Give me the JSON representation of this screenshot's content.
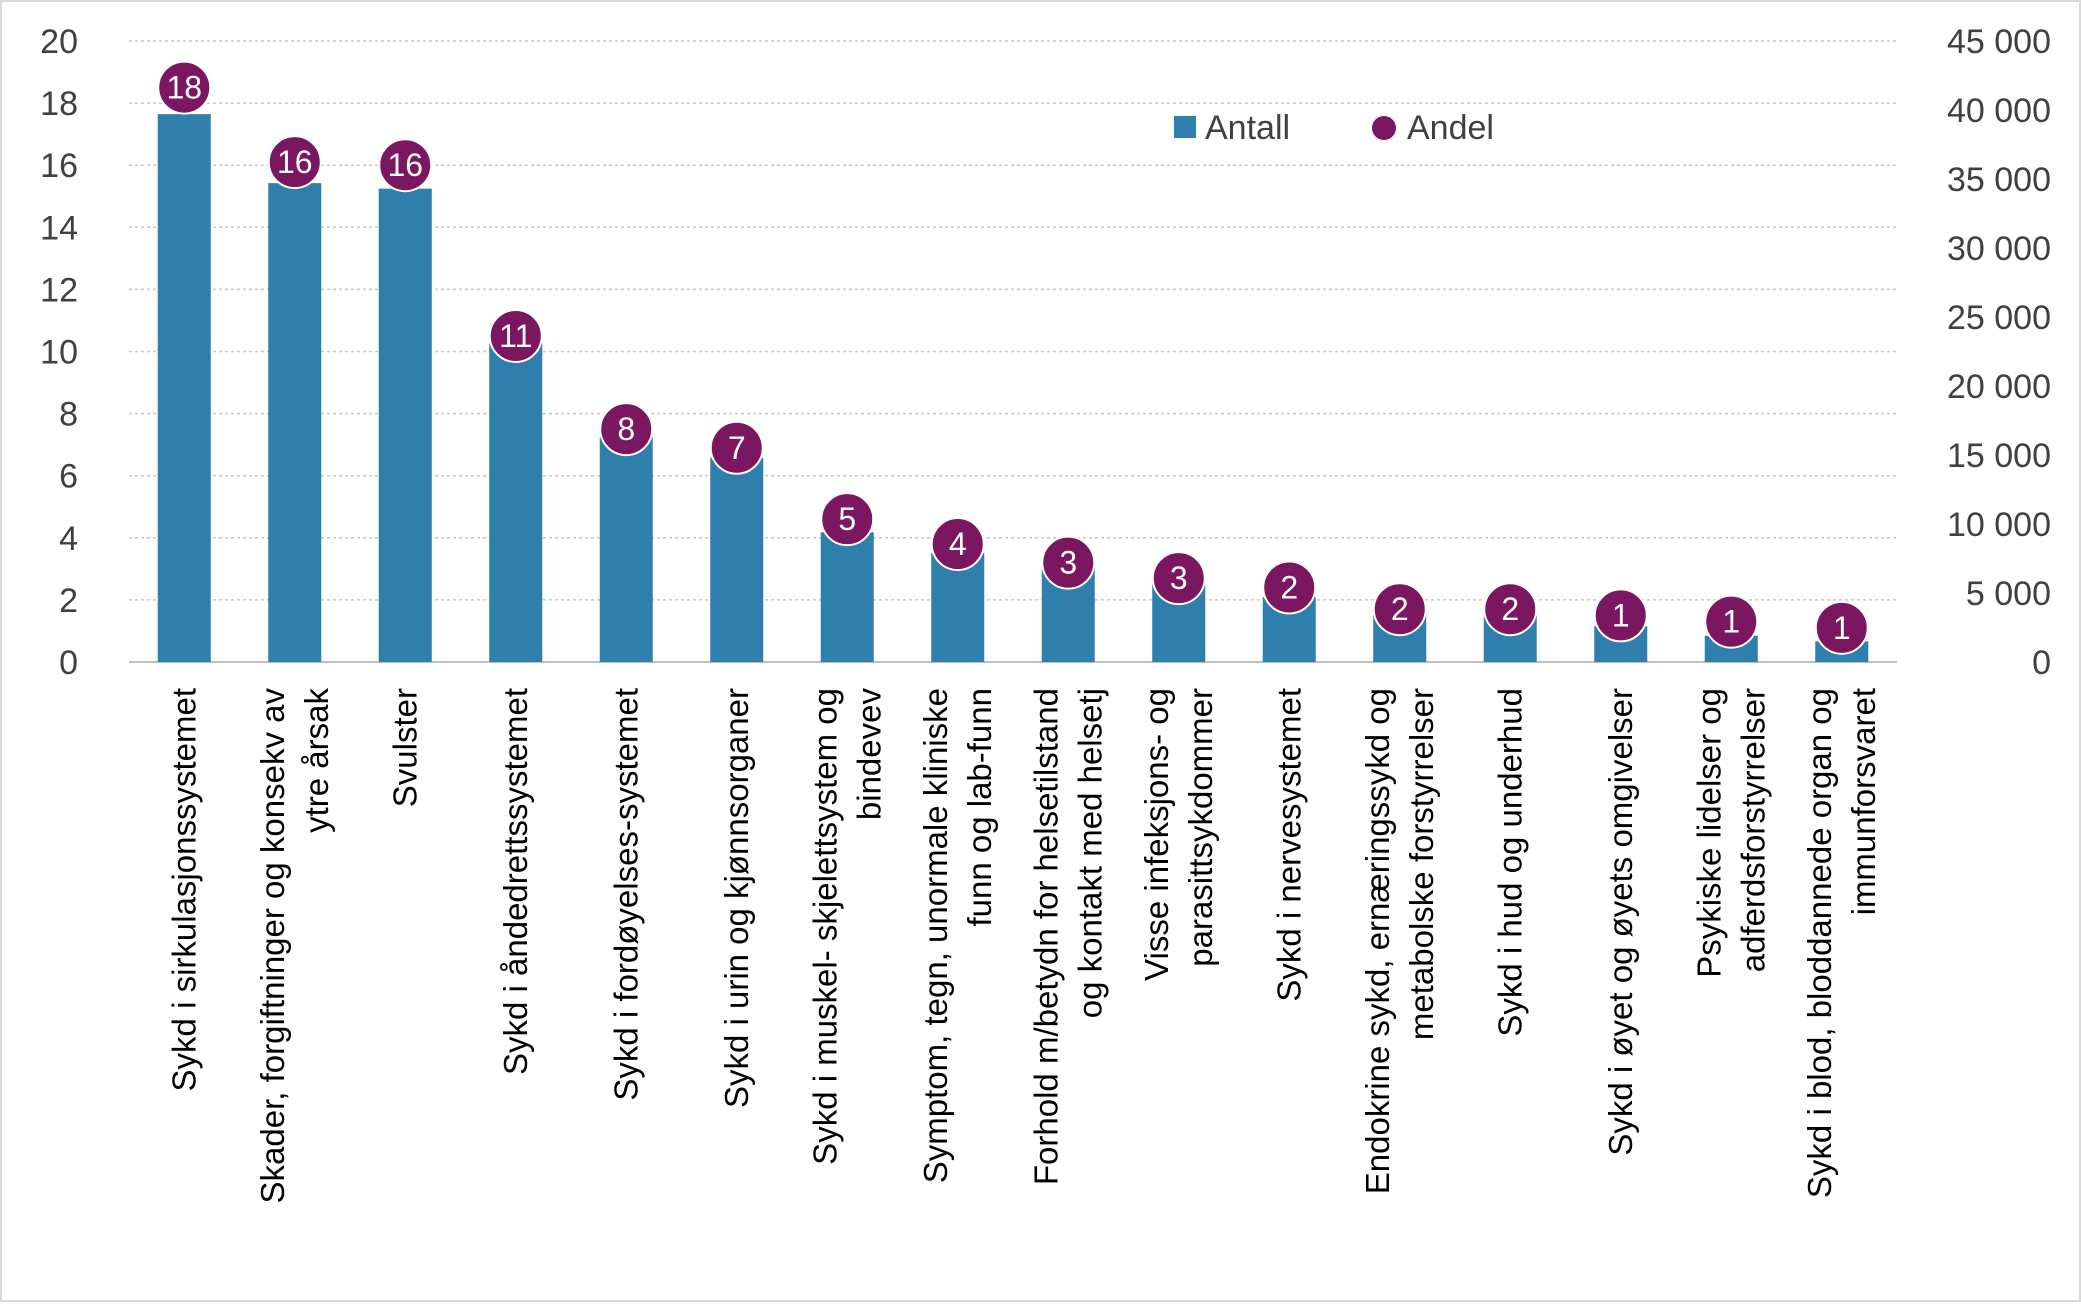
{
  "chart_data": {
    "type": "bar",
    "title": "",
    "categories": [
      [
        "Sykd i sirkulasjonssystemet"
      ],
      [
        "Skader, forgiftninger og konsekv av",
        "ytre årsak"
      ],
      [
        "Svulster"
      ],
      [
        "Sykd i åndedrettssystemet"
      ],
      [
        "Sykd i fordøyelses-systemet"
      ],
      [
        "Sykd i urin og kjønnsorganer"
      ],
      [
        "Sykd i muskel- skjelettsystem og",
        "bindevev"
      ],
      [
        "Symptom, tegn, unormale kliniske",
        "funn og lab-funn"
      ],
      [
        "Forhold m/betydn for helsetilstand",
        "og kontakt med helsetj"
      ],
      [
        "Visse infeksjons- og",
        "parasittsykdommer"
      ],
      [
        "Sykd i nervesystemet"
      ],
      [
        "Endokrine sykd, ernæringssykd og",
        "metabolske forstyrrelser"
      ],
      [
        "Sykd i hud og underhud"
      ],
      [
        "Sykd i øyet og øyets omgivelser"
      ],
      [
        "Psykiske lidelser og",
        "adferdsforstyrrelser"
      ],
      [
        "Sykd i blod, bloddannede organ og",
        "immunforsvaret"
      ]
    ],
    "series": [
      {
        "name": "Antall",
        "type": "bar",
        "axis": "right",
        "color": "#2e7fab",
        "values": [
          39700,
          34700,
          34300,
          23100,
          16300,
          14800,
          9400,
          7900,
          6900,
          5600,
          4700,
          3500,
          3400,
          2600,
          1900,
          1500
        ]
      },
      {
        "name": "Andel",
        "type": "scatter",
        "axis": "left",
        "color": "#7b1660",
        "values": [
          18.5,
          16.1,
          16.0,
          10.5,
          7.5,
          6.9,
          4.6,
          3.8,
          3.2,
          2.7,
          2.4,
          1.7,
          1.7,
          1.5,
          1.3,
          1.1
        ],
        "labels": [
          "18",
          "16",
          "16",
          "11",
          "8",
          "7",
          "5",
          "4",
          "3",
          "3",
          "2",
          "2",
          "2",
          "1",
          "1",
          "1"
        ]
      }
    ],
    "y_left": {
      "min": 0,
      "max": 20,
      "ticks": [
        "0",
        "2",
        "4",
        "6",
        "8",
        "10",
        "12",
        "14",
        "16",
        "18",
        "20"
      ]
    },
    "y_right": {
      "min": 0,
      "max": 45000,
      "ticks": [
        "0",
        "5 000",
        "10 000",
        "15 000",
        "20 000",
        "25 000",
        "30 000",
        "35 000",
        "40 000",
        "45 000"
      ]
    },
    "grid": true,
    "legend": {
      "position": "top-right",
      "items": [
        "Antall",
        "Andel"
      ]
    }
  }
}
